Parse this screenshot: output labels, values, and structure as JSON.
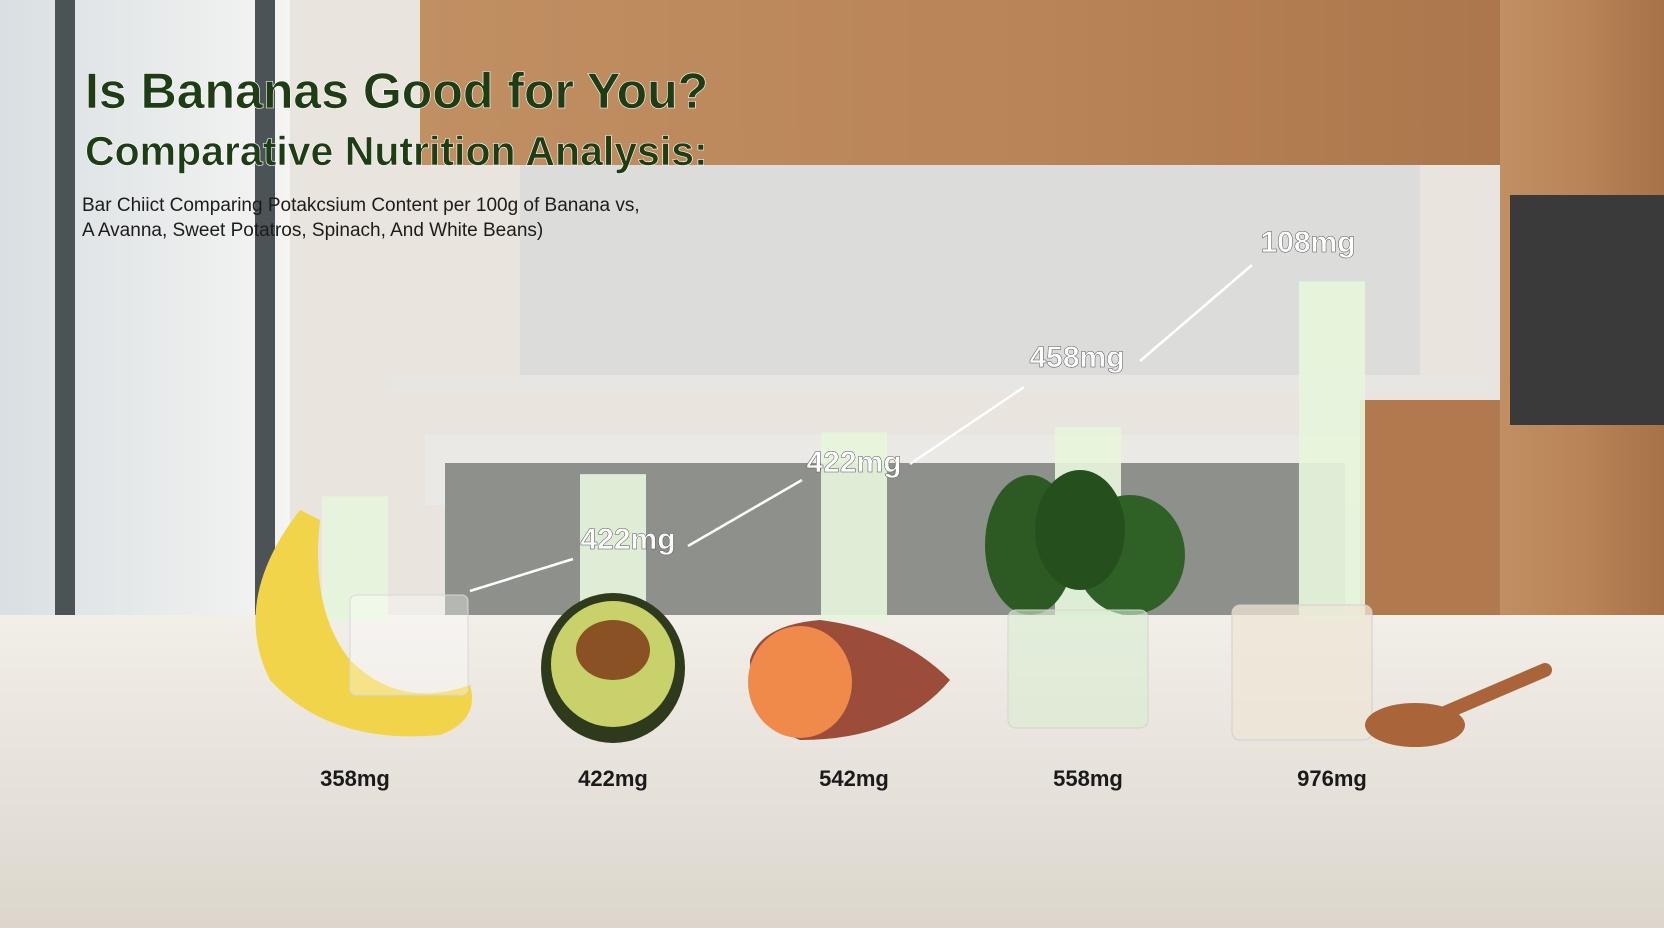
{
  "chart_data": {
    "type": "bar",
    "title": "Is Bananas Good for You?",
    "subtitle": "Comparative Nutrition Analysis:",
    "description": [
      "Bar Chiict Comparing Potakcsium Content per 100g of Banana vs,",
      "A Avanna, Sweet Potatros, Spinach, And White Beans)"
    ],
    "categories": [
      null,
      null,
      null,
      null,
      null
    ],
    "values": [
      358,
      422,
      542,
      558,
      976
    ],
    "value_labels": [
      "358mg",
      "422mg",
      "542mg",
      "558mg",
      "976mg"
    ],
    "color": "#e6f5dc",
    "annotations": [
      "422mg",
      "422mg",
      "458mg",
      "108mg"
    ]
  }
}
